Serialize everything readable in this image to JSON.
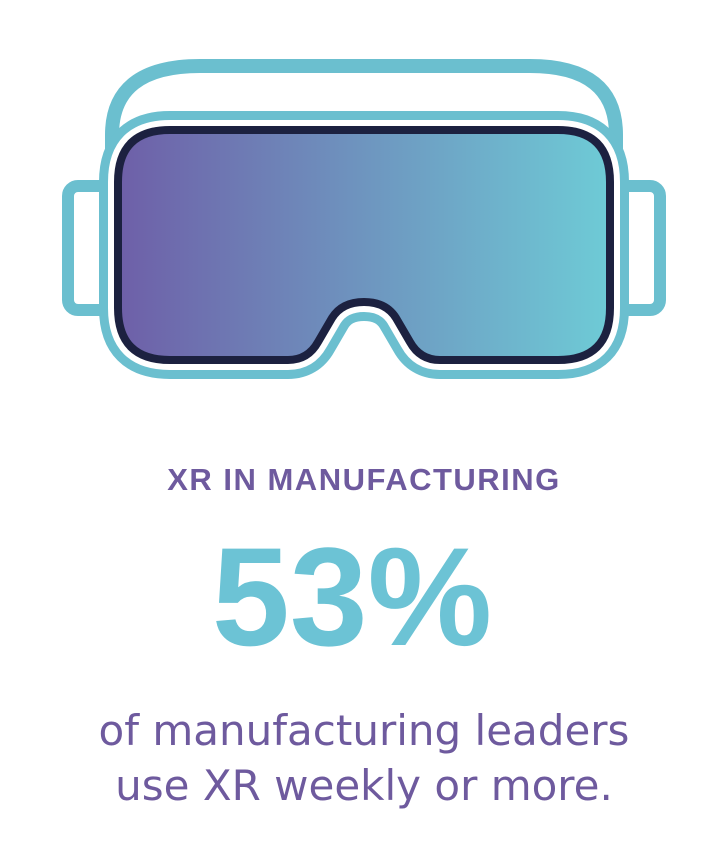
{
  "heading": "XR IN MANUFACTURING",
  "stat": "53%",
  "description": [
    "of manufacturing leaders",
    "use XR weekly or more."
  ]
}
